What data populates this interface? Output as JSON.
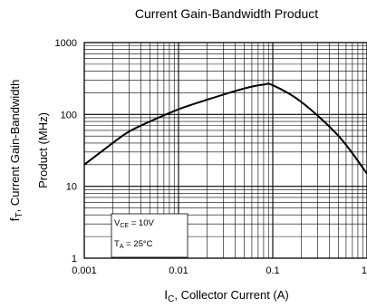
{
  "chart_data": {
    "type": "line",
    "title": "Current Gain-Bandwidth Product",
    "xlabel": {
      "main": "I",
      "sub": "C",
      "rest": ", Collector Current (A)"
    },
    "ylabel": {
      "main": "f",
      "sub": "T",
      "rest": ", Current Gain-Bandwidth",
      "line2": "Product (MHz)"
    },
    "x_scale": "log",
    "y_scale": "log",
    "xlim": [
      0.001,
      1
    ],
    "ylim": [
      1,
      1000
    ],
    "x_ticks": [
      "0.001",
      "0.01",
      "0.1",
      "1"
    ],
    "y_ticks": [
      "1",
      "10",
      "100",
      "1000"
    ],
    "grid": true,
    "series": [
      {
        "x": [
          0.001,
          0.002,
          0.003,
          0.005,
          0.01,
          0.02,
          0.05,
          0.08,
          0.1,
          0.2,
          0.5,
          1.0
        ],
        "y": [
          20,
          40,
          58,
          80,
          118,
          160,
          230,
          260,
          255,
          150,
          50,
          15
        ]
      }
    ],
    "annotations": [
      {
        "main": "V",
        "sub": "CE",
        "rest": " = 10V"
      },
      {
        "main": "T",
        "sub": "A",
        "rest": " = 25°C"
      }
    ]
  }
}
